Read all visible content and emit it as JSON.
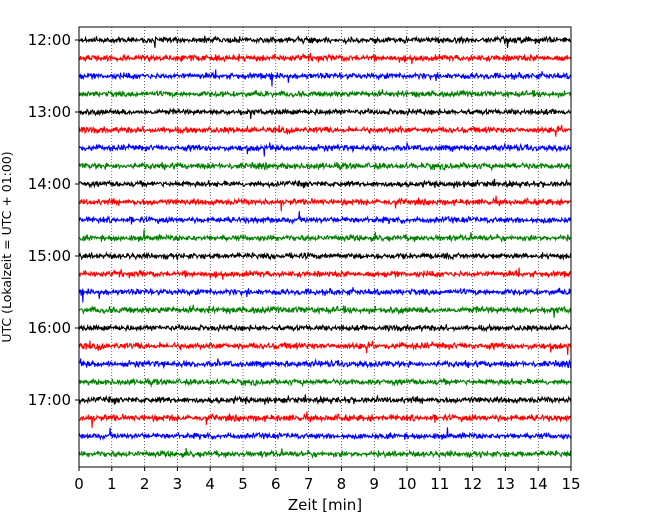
{
  "chart_data": {
    "type": "line",
    "title": "",
    "xlabel": "Zeit  [min]",
    "ylabel": "UTC (Lokalzeit = UTC + 01:00)",
    "xlim": [
      0,
      15
    ],
    "x_ticks": [
      0,
      1,
      2,
      3,
      4,
      5,
      6,
      7,
      8,
      9,
      10,
      11,
      12,
      13,
      14,
      15
    ],
    "x_tick_labels": [
      "0",
      "1",
      "2",
      "3",
      "4",
      "5",
      "6",
      "7",
      "8",
      "9",
      "10",
      "11",
      "12",
      "13",
      "14",
      "15"
    ],
    "y_tick_labels": [
      "12:00",
      "13:00",
      "14:00",
      "15:00",
      "16:00",
      "17:00"
    ],
    "grid": "vertical-dotted",
    "trace_interval_min": 15,
    "colors": [
      "#000000",
      "#ff0000",
      "#0000ff",
      "#008000"
    ],
    "series": [
      {
        "start": "12:00",
        "amplitude": 0.16
      },
      {
        "start": "12:15",
        "amplitude": 0.17
      },
      {
        "start": "12:30",
        "amplitude": 0.16
      },
      {
        "start": "12:45",
        "amplitude": 0.15
      },
      {
        "start": "13:00",
        "amplitude": 0.15
      },
      {
        "start": "13:15",
        "amplitude": 0.16
      },
      {
        "start": "13:30",
        "amplitude": 0.16
      },
      {
        "start": "13:45",
        "amplitude": 0.16
      },
      {
        "start": "14:00",
        "amplitude": 0.15
      },
      {
        "start": "14:15",
        "amplitude": 0.16
      },
      {
        "start": "14:30",
        "amplitude": 0.16
      },
      {
        "start": "14:45",
        "amplitude": 0.15
      },
      {
        "start": "15:00",
        "amplitude": 0.15
      },
      {
        "start": "15:15",
        "amplitude": 0.16
      },
      {
        "start": "15:30",
        "amplitude": 0.16
      },
      {
        "start": "15:45",
        "amplitude": 0.17
      },
      {
        "start": "16:00",
        "amplitude": 0.15
      },
      {
        "start": "16:15",
        "amplitude": 0.17
      },
      {
        "start": "16:30",
        "amplitude": 0.16
      },
      {
        "start": "16:45",
        "amplitude": 0.15
      },
      {
        "start": "17:00",
        "amplitude": 0.16
      },
      {
        "start": "17:15",
        "amplitude": 0.17
      },
      {
        "start": "17:30",
        "amplitude": 0.15
      },
      {
        "start": "17:45",
        "amplitude": 0.15
      }
    ]
  }
}
